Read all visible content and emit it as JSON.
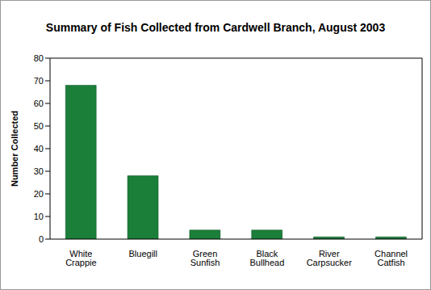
{
  "chart_data": {
    "type": "bar",
    "title": "Summary of Fish Collected from Cardwell Branch, August 2003",
    "y_label": "Number Collected",
    "categories": [
      "White Crappie",
      "Bluegill",
      "Green Sunfish",
      "Black Bullhead",
      "River Carpsucker",
      "Channel Catfish"
    ],
    "values": [
      68,
      28,
      4,
      4,
      1,
      1
    ],
    "color": "#1b7f3a",
    "ylim": [
      0,
      80
    ],
    "yticks": [
      0,
      10,
      20,
      30,
      40,
      50,
      60,
      70,
      80
    ],
    "grid": false
  }
}
